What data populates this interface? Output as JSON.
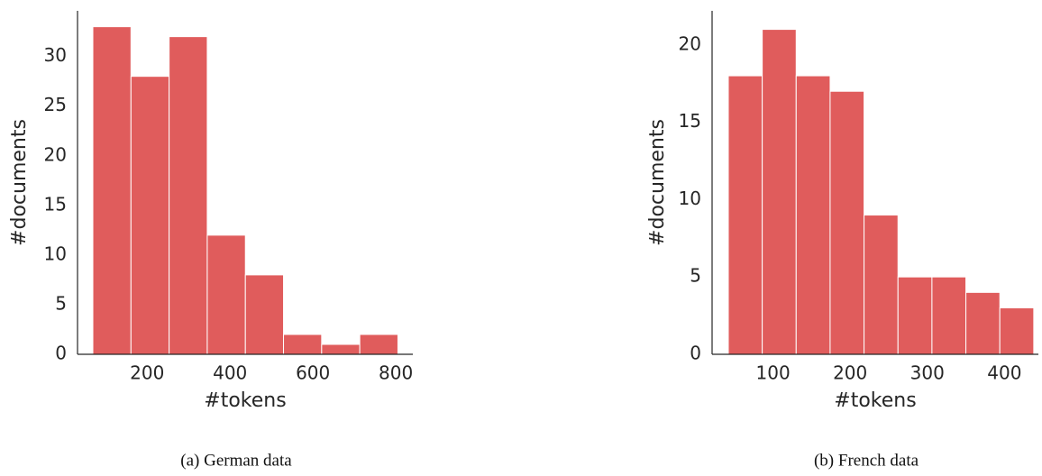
{
  "chart_data": [
    {
      "type": "histogram",
      "caption": "(a) German data",
      "xlabel": "#tokens",
      "ylabel": "#documents",
      "bins": [
        69,
        161,
        253,
        345,
        437,
        529,
        621,
        713,
        805
      ],
      "values": [
        33,
        28,
        32,
        12,
        8,
        2,
        1,
        2
      ],
      "color": "#e05c5c",
      "xlim": [
        32,
        841
      ],
      "ylim": [
        0,
        34.6
      ],
      "xticks": [
        200,
        400,
        600,
        800
      ],
      "yticks": [
        0,
        5,
        10,
        15,
        20,
        25,
        30
      ]
    },
    {
      "type": "histogram",
      "caption": "(b) French data",
      "xlabel": "#tokens",
      "ylabel": "#documents",
      "bins": [
        42,
        86,
        130,
        174,
        218,
        262,
        306,
        350,
        394,
        438
      ],
      "values": [
        18,
        21,
        18,
        17,
        9,
        5,
        5,
        4,
        3
      ],
      "color": "#e05c5c",
      "xlim": [
        21,
        444
      ],
      "ylim": [
        0,
        22.2
      ],
      "xticks": [
        100,
        200,
        300,
        400
      ],
      "yticks": [
        0,
        5,
        10,
        15,
        20
      ]
    }
  ]
}
